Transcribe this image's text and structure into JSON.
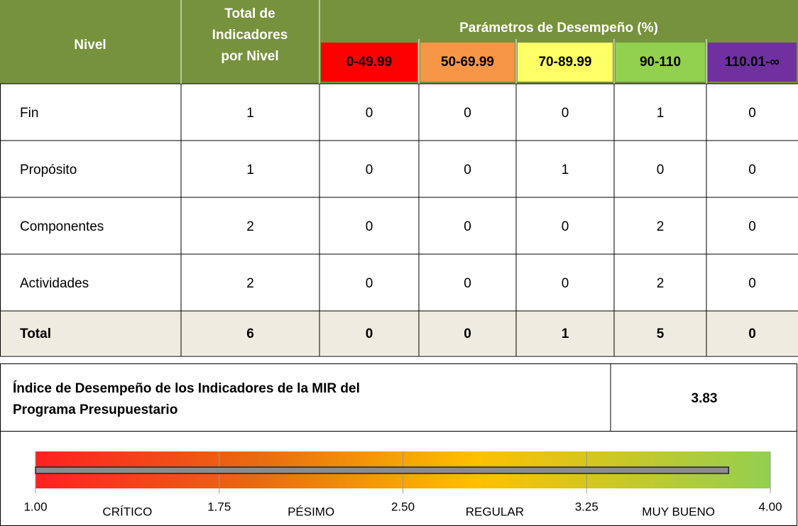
{
  "table": {
    "headers": {
      "nivel": "Nivel",
      "total": [
        "Total de",
        "Indicadores",
        "por Nivel"
      ],
      "params": "Parámetros de Desempeño (%)",
      "ranges": [
        "0-49.99",
        "50-69.99",
        "70-89.99",
        "90-110",
        "110.01-∞"
      ],
      "range_colors": [
        "#ff0000",
        "#f79646",
        "#ffff66",
        "#92d050",
        "#7030a0"
      ]
    },
    "rows": [
      [
        "Fin",
        1,
        0,
        0,
        0,
        1,
        0
      ],
      [
        "Propósito",
        1,
        0,
        0,
        1,
        0,
        0
      ],
      [
        "Componentes",
        2,
        0,
        0,
        0,
        2,
        0
      ],
      [
        "Actividades",
        2,
        0,
        0,
        0,
        2,
        0
      ]
    ],
    "total_row": [
      "Total",
      6,
      0,
      0,
      1,
      5,
      0
    ]
  },
  "index": {
    "label": [
      "Índice de Desempeño de los Indicadores de la MIR del",
      "Programa Presupuestario"
    ],
    "value": 3.83
  },
  "gauge": {
    "xlim": [
      1,
      4
    ],
    "ticks": [
      {
        "value": 1,
        "label": "1.00"
      },
      {
        "value": 1.75,
        "label": "1.75"
      },
      {
        "value": 2.5,
        "label": "2.50"
      },
      {
        "value": 3.25,
        "label": "3.25"
      },
      {
        "value": 4,
        "label": "4.00"
      }
    ],
    "zones": [
      "CRÍTICO",
      "PÉSIMO",
      "REGULAR",
      "MUY BUENO"
    ]
  }
}
